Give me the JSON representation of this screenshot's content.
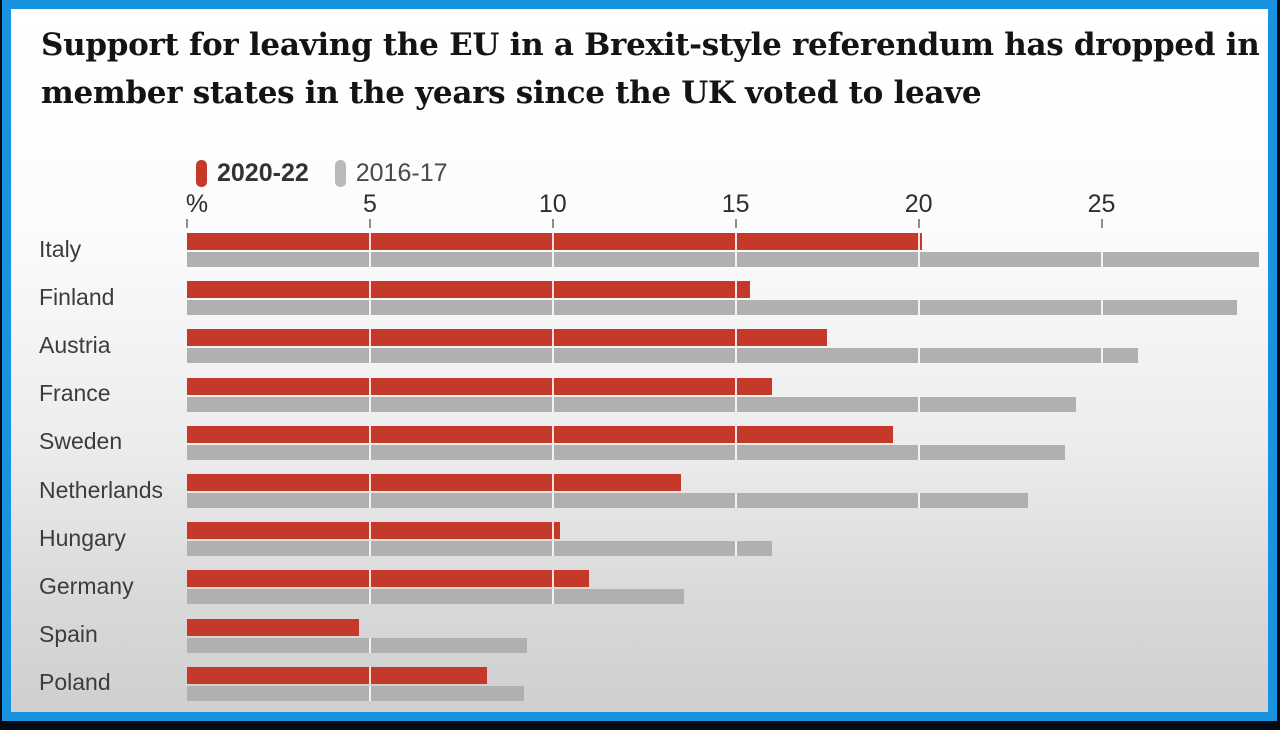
{
  "title": {
    "lines": [
      "Support for leaving the EU in a Brexit-style referendum has dropped in",
      "member states in the years since the UK voted to leave"
    ]
  },
  "legend": {
    "items": [
      {
        "label": "2020-22",
        "color": "#c5392b"
      },
      {
        "label": "2016-17",
        "color": "#b9b9b9"
      }
    ]
  },
  "axis": {
    "unit_label": "%",
    "ticks": [
      5,
      10,
      15,
      20,
      25
    ]
  },
  "colors": {
    "bar_2020_22": "#c5392b",
    "bar_2016_17": "#b0b0b0",
    "frame_blue": "#1793e0",
    "frame_outer_dark": "#050b14",
    "title_text": "#141414",
    "label_text": "#3c3c3c"
  },
  "chart_data": {
    "type": "bar",
    "orientation": "horizontal",
    "title": "Support for leaving the EU in a Brexit-style referendum has dropped in member states in the years since the UK voted to leave",
    "xlabel": "%",
    "ylabel": "",
    "xlim": [
      0,
      29.5
    ],
    "legend_position": "top-left",
    "gridlines": "white vertical lines at ticks drawn across bars only",
    "categories": [
      "Italy",
      "Finland",
      "Austria",
      "France",
      "Sweden",
      "Netherlands",
      "Hungary",
      "Germany",
      "Spain",
      "Poland"
    ],
    "series": [
      {
        "name": "2020-22",
        "color": "#c5392b",
        "values": [
          20.1,
          15.4,
          17.5,
          16.0,
          19.3,
          13.5,
          10.2,
          11.0,
          4.7,
          8.2
        ]
      },
      {
        "name": "2016-17",
        "color": "#b0b0b0",
        "values": [
          29.3,
          28.7,
          26.0,
          24.3,
          24.0,
          23.0,
          16.0,
          13.6,
          9.3,
          9.2
        ]
      }
    ]
  }
}
